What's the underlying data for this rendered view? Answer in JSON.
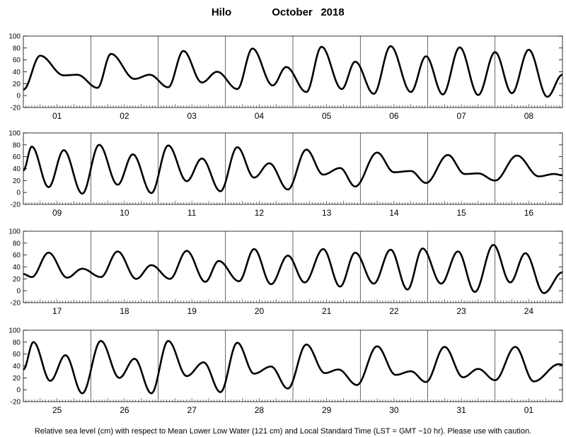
{
  "chart_data": {
    "type": "line",
    "station": "Hilo",
    "month": "October",
    "year": "2018",
    "footer": "Relative sea level (cm) with respect to Mean Lower Low Water (121 cm) and Local Standard Time (LST = GMT −10 hr). Please use with caution.",
    "ylim": [
      -20,
      100
    ],
    "yticks": [
      -20,
      0,
      20,
      40,
      60,
      80,
      100
    ],
    "grid": "vertical lines at day boundaries",
    "line_color": "#000000",
    "panels": [
      {
        "days": [
          "01",
          "02",
          "03",
          "04",
          "05",
          "06",
          "07",
          "08"
        ],
        "extrema": [
          [
            0.0,
            10
          ],
          [
            0.5,
            67
          ],
          [
            1.2,
            34
          ],
          [
            1.6,
            35
          ],
          [
            2.2,
            13
          ],
          [
            2.6,
            70
          ],
          [
            3.3,
            28
          ],
          [
            3.75,
            35
          ],
          [
            4.3,
            14
          ],
          [
            4.75,
            75
          ],
          [
            5.3,
            22
          ],
          [
            5.75,
            40
          ],
          [
            6.35,
            11
          ],
          [
            6.8,
            79
          ],
          [
            7.4,
            17
          ],
          [
            7.8,
            48
          ],
          [
            8.4,
            6
          ],
          [
            8.85,
            82
          ],
          [
            9.45,
            11
          ],
          [
            9.85,
            57
          ],
          [
            10.4,
            3
          ],
          [
            10.9,
            83
          ],
          [
            11.5,
            6
          ],
          [
            11.95,
            66
          ],
          [
            12.45,
            2
          ],
          [
            12.95,
            81
          ],
          [
            13.5,
            1
          ],
          [
            14.0,
            73
          ],
          [
            14.5,
            4
          ],
          [
            15.0,
            77
          ],
          [
            15.55,
            -2
          ],
          [
            16.0,
            35
          ]
        ]
      },
      {
        "days": [
          "09",
          "10",
          "11",
          "12",
          "13",
          "14",
          "15",
          "16"
        ],
        "extrema": [
          [
            0.0,
            37
          ],
          [
            0.25,
            77
          ],
          [
            0.75,
            9
          ],
          [
            1.2,
            71
          ],
          [
            1.75,
            -2
          ],
          [
            2.25,
            80
          ],
          [
            2.8,
            13
          ],
          [
            3.25,
            64
          ],
          [
            3.8,
            -1
          ],
          [
            4.3,
            79
          ],
          [
            4.85,
            19
          ],
          [
            5.3,
            57
          ],
          [
            5.85,
            2
          ],
          [
            6.35,
            76
          ],
          [
            6.85,
            25
          ],
          [
            7.3,
            49
          ],
          [
            7.85,
            5
          ],
          [
            8.4,
            72
          ],
          [
            8.9,
            30
          ],
          [
            9.4,
            41
          ],
          [
            9.85,
            10
          ],
          [
            10.5,
            67
          ],
          [
            11.0,
            34
          ],
          [
            11.5,
            36
          ],
          [
            11.95,
            16
          ],
          [
            12.6,
            63
          ],
          [
            13.1,
            31
          ],
          [
            13.5,
            32
          ],
          [
            14.0,
            20
          ],
          [
            14.65,
            62
          ],
          [
            15.3,
            27
          ],
          [
            15.75,
            31
          ],
          [
            16.0,
            29
          ]
        ]
      },
      {
        "days": [
          "17",
          "18",
          "19",
          "20",
          "21",
          "22",
          "23",
          "24"
        ],
        "extrema": [
          [
            0.0,
            28
          ],
          [
            0.25,
            23
          ],
          [
            0.75,
            64
          ],
          [
            1.3,
            22
          ],
          [
            1.75,
            37
          ],
          [
            2.3,
            23
          ],
          [
            2.8,
            66
          ],
          [
            3.35,
            20
          ],
          [
            3.8,
            43
          ],
          [
            4.35,
            20
          ],
          [
            4.85,
            67
          ],
          [
            5.4,
            15
          ],
          [
            5.8,
            50
          ],
          [
            6.4,
            16
          ],
          [
            6.85,
            70
          ],
          [
            7.35,
            11
          ],
          [
            7.85,
            59
          ],
          [
            8.35,
            14
          ],
          [
            8.9,
            70
          ],
          [
            9.4,
            7
          ],
          [
            9.85,
            64
          ],
          [
            10.4,
            12
          ],
          [
            10.9,
            69
          ],
          [
            11.4,
            2
          ],
          [
            11.85,
            71
          ],
          [
            12.4,
            12
          ],
          [
            12.9,
            66
          ],
          [
            13.4,
            -2
          ],
          [
            13.95,
            77
          ],
          [
            14.45,
            14
          ],
          [
            14.9,
            63
          ],
          [
            15.45,
            -4
          ],
          [
            16.0,
            31
          ]
        ]
      },
      {
        "days": [
          "25",
          "26",
          "27",
          "28",
          "29",
          "30",
          "31",
          "01"
        ],
        "extrema": [
          [
            0.0,
            34
          ],
          [
            0.3,
            80
          ],
          [
            0.8,
            15
          ],
          [
            1.25,
            58
          ],
          [
            1.75,
            -6
          ],
          [
            2.3,
            82
          ],
          [
            2.85,
            20
          ],
          [
            3.3,
            52
          ],
          [
            3.8,
            -6
          ],
          [
            4.3,
            82
          ],
          [
            4.85,
            23
          ],
          [
            5.35,
            46
          ],
          [
            5.85,
            -4
          ],
          [
            6.35,
            79
          ],
          [
            6.85,
            27
          ],
          [
            7.35,
            39
          ],
          [
            7.85,
            2
          ],
          [
            8.4,
            76
          ],
          [
            8.95,
            28
          ],
          [
            9.35,
            34
          ],
          [
            9.9,
            8
          ],
          [
            10.5,
            73
          ],
          [
            11.05,
            25
          ],
          [
            11.5,
            31
          ],
          [
            11.95,
            13
          ],
          [
            12.5,
            72
          ],
          [
            13.05,
            21
          ],
          [
            13.5,
            35
          ],
          [
            14.0,
            16
          ],
          [
            14.6,
            72
          ],
          [
            15.15,
            14
          ],
          [
            15.9,
            43
          ],
          [
            16.0,
            42
          ]
        ]
      }
    ]
  }
}
